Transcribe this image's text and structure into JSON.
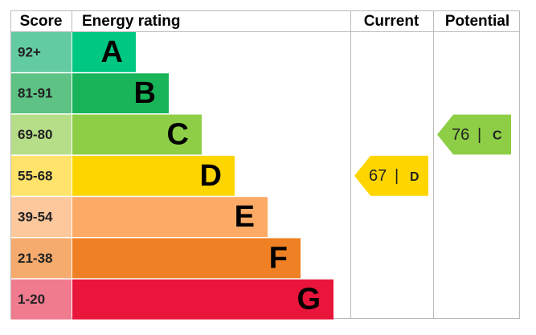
{
  "header": {
    "score": "Score",
    "energy_rating": "Energy rating",
    "current": "Current",
    "potential": "Potential"
  },
  "ratings": [
    {
      "score": "92+",
      "letter": "A",
      "color": "#00c781",
      "score_color": "#63cba2"
    },
    {
      "score": "81-91",
      "letter": "B",
      "color": "#19b459",
      "score_color": "#5dc283"
    },
    {
      "score": "69-80",
      "letter": "C",
      "color": "#8dce46",
      "score_color": "#b6de88"
    },
    {
      "score": "55-68",
      "letter": "D",
      "color": "#ffd500",
      "score_color": "#ffe36a"
    },
    {
      "score": "39-54",
      "letter": "E",
      "color": "#fcaa65",
      "score_color": "#fdc89c"
    },
    {
      "score": "21-38",
      "letter": "F",
      "color": "#ef8023",
      "score_color": "#f5ab6d"
    },
    {
      "score": "1-20",
      "letter": "G",
      "color": "#e9153b",
      "score_color": "#f07a8e"
    }
  ],
  "separator": "|",
  "current": {
    "value": 67,
    "letter": "D"
  },
  "potential": {
    "value": 76,
    "letter": "C"
  }
}
